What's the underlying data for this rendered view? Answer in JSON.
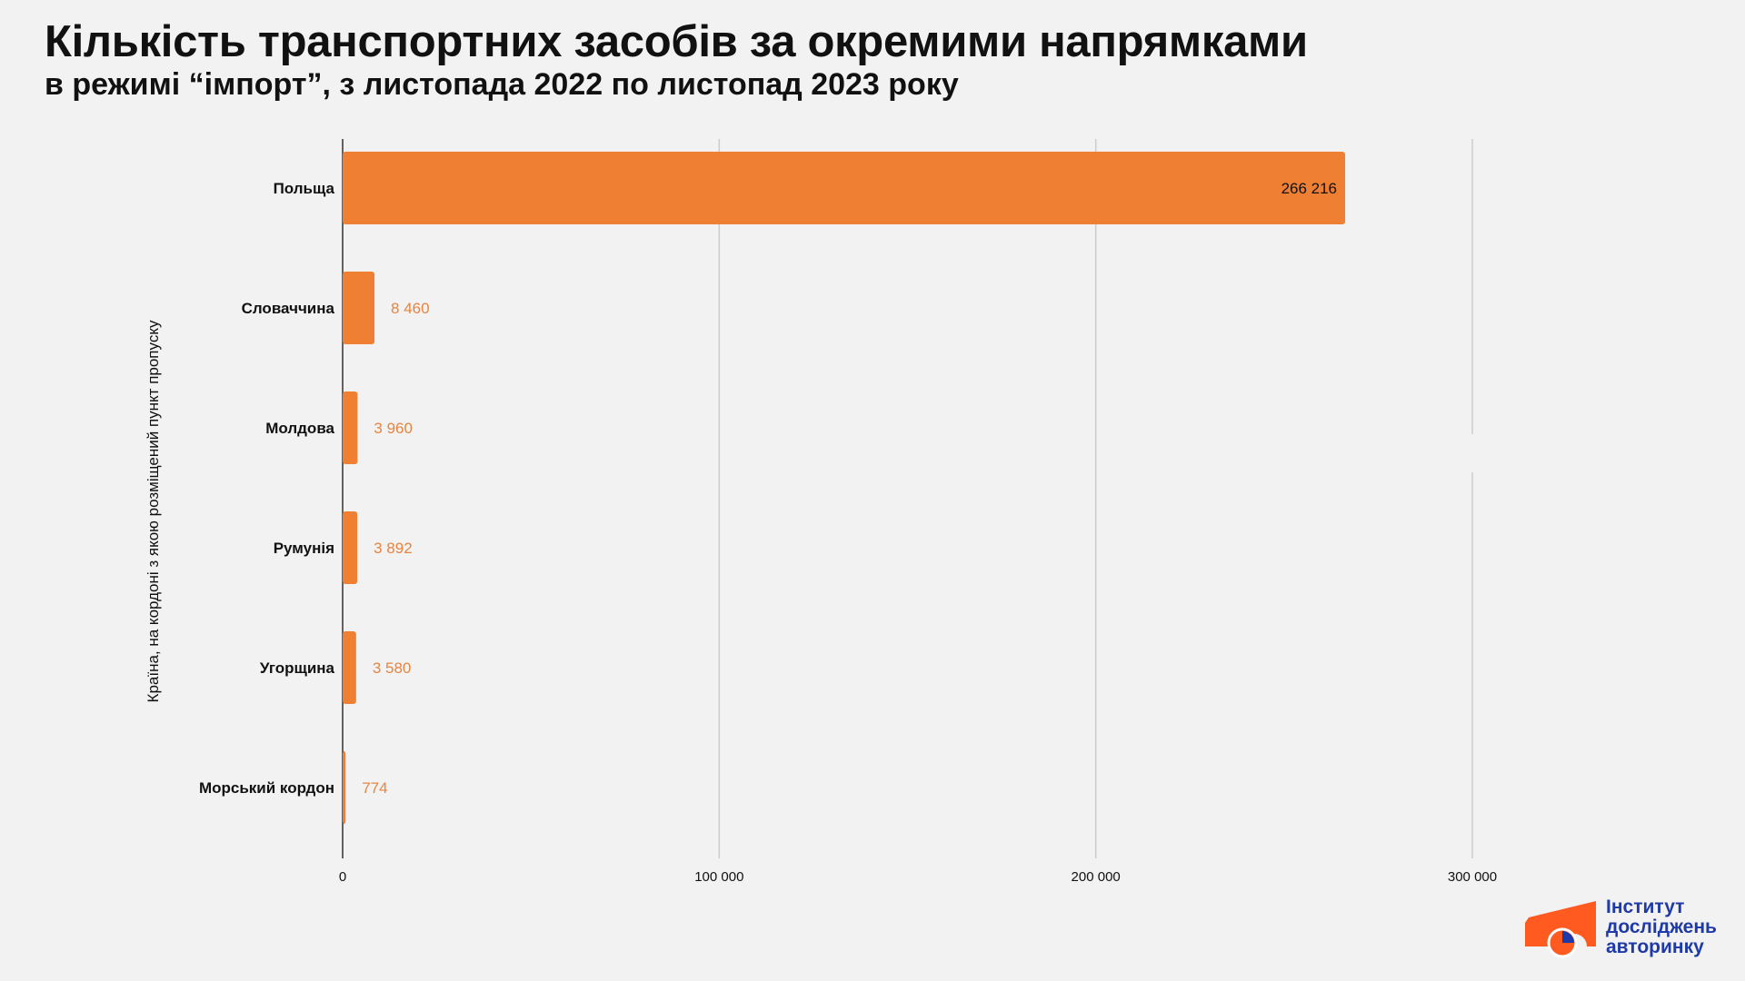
{
  "title": "Кількість транспортних засобів за окремими напрямками",
  "subtitle": "в режимі “імпорт”, з листопада 2022 по листопад 2023 року",
  "colors": {
    "bar": "#ee7f33",
    "inside_label": "#111111",
    "outside_label": "#e8843f",
    "grid": "#cccccc",
    "axis": "#333333",
    "brand": "#1e3aa8",
    "brand_orange": "#ff5a1f"
  },
  "chart_data": {
    "type": "bar",
    "orientation": "horizontal",
    "categories": [
      "Польща",
      "Словаччина",
      "Молдова",
      "Румунія",
      "Угорщина",
      "Морський кордон"
    ],
    "values": [
      266216,
      8460,
      3960,
      3892,
      3580,
      774
    ],
    "value_labels": [
      "266 216",
      "8 460",
      "3 960",
      "3 892",
      "3 580",
      "774"
    ],
    "xlabel": "",
    "ylabel": "Країна, на кордоні з якою розміщений пункт пропуску",
    "xlim": [
      0,
      300000
    ],
    "x_ticks": [
      0,
      100000,
      200000,
      300000
    ],
    "x_tick_labels": [
      "0",
      "100 000",
      "200 000",
      "300 000"
    ],
    "grid": true,
    "legend": "none"
  },
  "logo": {
    "line1": "Інститут",
    "line2": "досліджень",
    "line3": "авторинку"
  }
}
